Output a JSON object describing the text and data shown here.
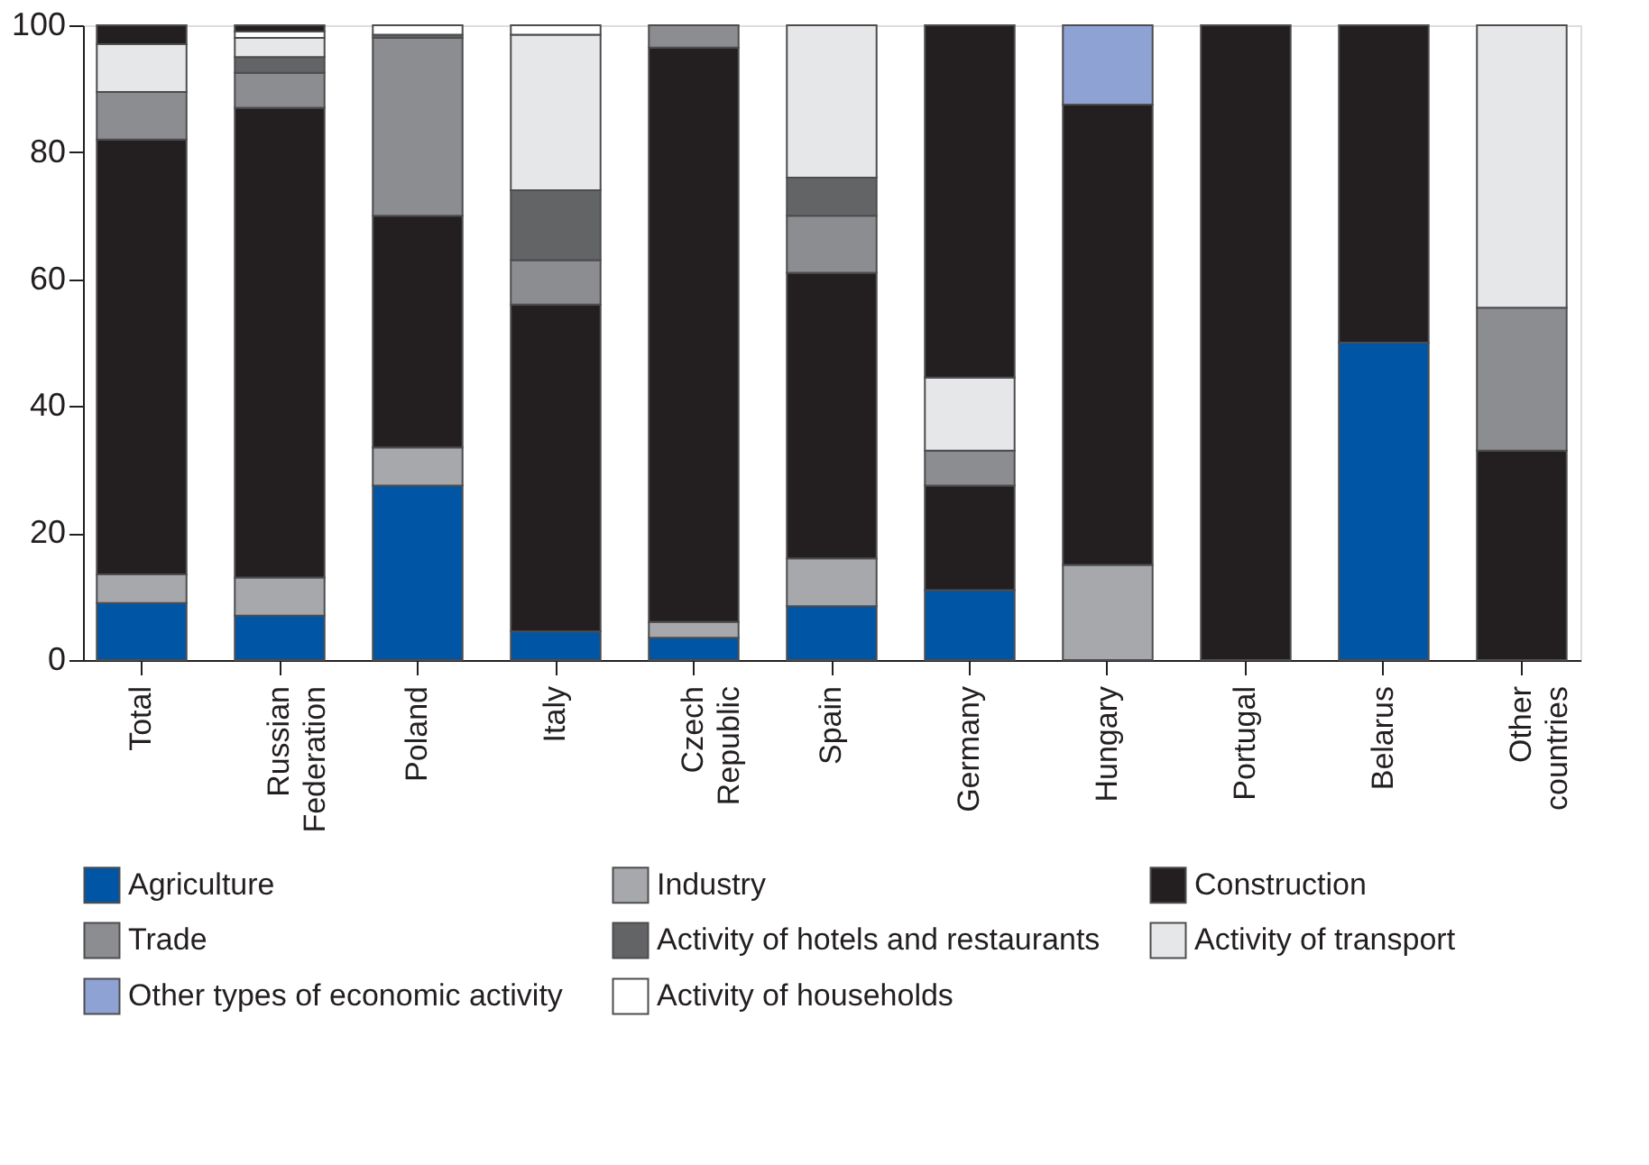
{
  "chart_data": {
    "type": "bar",
    "stacked": true,
    "categories": [
      "Total",
      "Russian Federation",
      "Poland",
      "Italy",
      "Czech Republic",
      "Spain",
      "Germany",
      "Hungary",
      "Portugal",
      "Belarus",
      "Other countries"
    ],
    "series": [
      {
        "name": "Agriculture",
        "color": "#0055a5",
        "values": [
          9,
          7,
          27.5,
          4.5,
          3.5,
          8.5,
          11,
          null,
          null,
          50,
          null
        ]
      },
      {
        "name": "Industry",
        "color": "#a7a8ab",
        "values": [
          4.5,
          6,
          6,
          null,
          2.5,
          7.5,
          null,
          15,
          null,
          null,
          null
        ]
      },
      {
        "name": "Construction",
        "color": "#231f20",
        "values": [
          68.5,
          74,
          36.5,
          51.5,
          90.5,
          45,
          16.5,
          72.5,
          100,
          50,
          33
        ]
      },
      {
        "name": "Trade",
        "color": "#8c8d90",
        "values": [
          7.5,
          5.5,
          28,
          7,
          3.5,
          9,
          5.5,
          null,
          null,
          null,
          22.5
        ]
      },
      {
        "name": "Activity of hotels and restaurants",
        "color": "#636466",
        "values": [
          null,
          2.5,
          0.5,
          11,
          null,
          6,
          null,
          null,
          null,
          null,
          null
        ]
      },
      {
        "name": "Activity of transport",
        "color": "#e6e7e8",
        "values": [
          7.5,
          3,
          null,
          24.5,
          null,
          24,
          11.5,
          null,
          null,
          null,
          44.5
        ]
      },
      {
        "name": "Other types of economic activity",
        "color": "#8fa2d4",
        "values": [
          null,
          null,
          null,
          null,
          null,
          null,
          null,
          12.5,
          null,
          null,
          null
        ]
      },
      {
        "name": "Activity of households",
        "color": "#ffffff",
        "values": [
          null,
          1,
          1.5,
          1.5,
          null,
          null,
          null,
          null,
          null,
          null,
          null
        ]
      },
      {
        "color": "#231f20",
        "values": [
          3,
          1,
          null,
          null,
          null,
          null,
          55.5,
          null,
          null,
          null,
          null
        ]
      }
    ],
    "ylim": [
      0,
      100
    ],
    "yticks": [
      0,
      20,
      40,
      60,
      80,
      100
    ],
    "grid": false,
    "legend": "bottom"
  }
}
